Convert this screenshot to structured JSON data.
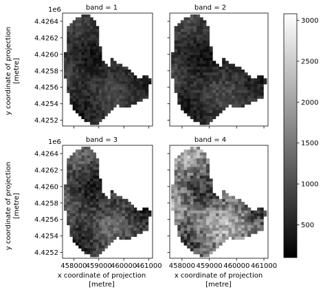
{
  "chart_data": {
    "type": "heatmap",
    "colormap": "gray",
    "panels": [
      {
        "title": "band = 1",
        "band": 1,
        "brightness": 0.22,
        "contrast": 0.35
      },
      {
        "title": "band = 2",
        "band": 2,
        "brightness": 0.22,
        "contrast": 0.38
      },
      {
        "title": "band = 3",
        "band": 3,
        "brightness": 0.3,
        "contrast": 0.55
      },
      {
        "title": "band = 4",
        "band": 4,
        "brightness": 0.55,
        "contrast": 0.85
      }
    ],
    "x_ticks": [
      "458000",
      "459000",
      "460000",
      "461000"
    ],
    "x_tick_values": [
      458000,
      459000,
      460000,
      461000
    ],
    "y_ticks": [
      "4.4252",
      "4.4254",
      "4.4256",
      "4.4258",
      "4.4260",
      "4.4262",
      "4.4264"
    ],
    "y_tick_values": [
      4.4252,
      4.4254,
      4.4256,
      4.4258,
      4.426,
      4.4262,
      4.4264
    ],
    "y_offset": "1e6",
    "xlim": [
      457550,
      461150
    ],
    "ylim": [
      4.42513,
      4.4265
    ],
    "xlabel_line1": "x coordinate of projection",
    "xlabel_line2": "[metre]",
    "ylabel_line1": "y coordinate of projection",
    "ylabel_line2": "[metre]",
    "colorbar": {
      "ticks": [
        "500",
        "1000",
        "1500",
        "2000",
        "2500",
        "3000"
      ],
      "tick_values": [
        500,
        1000,
        1500,
        2000,
        2500,
        3000
      ],
      "range": [
        100,
        3080
      ]
    }
  }
}
